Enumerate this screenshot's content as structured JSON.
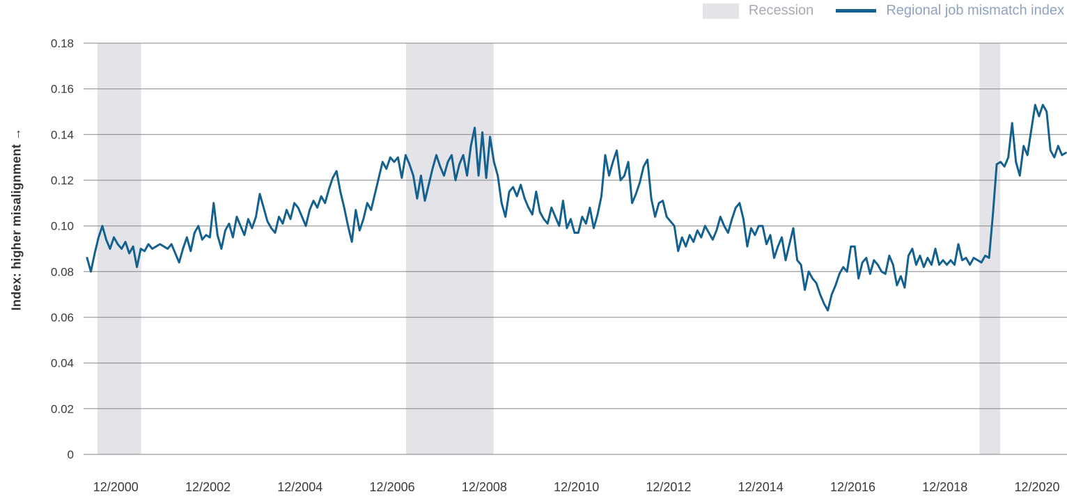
{
  "figure": {
    "y_axis_title": "Index: higher misalignment →",
    "background_color": "#ffffff"
  },
  "legend": {
    "items": [
      {
        "label": "Recession",
        "swatch": "band",
        "swatch_color": "#e3e3e8",
        "text_color": "#a9a9b2"
      },
      {
        "label": "Regional job mismatch index",
        "swatch": "line",
        "swatch_color": "#14618f",
        "text_color": "#8fa3bf"
      }
    ]
  },
  "chart_data": {
    "type": "line",
    "title": "",
    "xlabel": "",
    "ylabel": "Index: higher misalignment →",
    "ylim": [
      0,
      0.18
    ],
    "ytick_step": 0.02,
    "ytick_labels": [
      "0",
      "0.02",
      "0.04",
      "0.06",
      "0.08",
      "0.10",
      "0.12",
      "0.14",
      "0.16",
      "0.18"
    ],
    "grid": "horizontal",
    "gridline_color": "#858585",
    "legend_position": "top-right",
    "x_domain_years": [
      2000.3,
      2021.65
    ],
    "xticks": [
      {
        "year_value": 2001,
        "label": "12/2000"
      },
      {
        "year_value": 2003,
        "label": "12/2002"
      },
      {
        "year_value": 2005,
        "label": "12/2004"
      },
      {
        "year_value": 2007,
        "label": "12/2006"
      },
      {
        "year_value": 2009,
        "label": "12/2008"
      },
      {
        "year_value": 2011,
        "label": "12/2010"
      },
      {
        "year_value": 2013,
        "label": "12/2012"
      },
      {
        "year_value": 2015,
        "label": "12/2014"
      },
      {
        "year_value": 2017,
        "label": "12/2016"
      },
      {
        "year_value": 2019,
        "label": "12/2018"
      },
      {
        "year_value": 2021,
        "label": "12/2020"
      }
    ],
    "recession_bands_years": [
      [
        2000.6,
        2001.55
      ],
      [
        2007.3,
        2009.2
      ],
      [
        2019.75,
        2020.2
      ]
    ],
    "series": [
      {
        "name": "Regional job mismatch index",
        "color": "#14618f",
        "frequency": "monthly",
        "start_year": 2000,
        "start_month": 5,
        "values": [
          0.086,
          0.08,
          0.088,
          0.095,
          0.1,
          0.094,
          0.09,
          0.095,
          0.092,
          0.09,
          0.093,
          0.088,
          0.091,
          0.082,
          0.09,
          0.089,
          0.092,
          0.09,
          0.091,
          0.092,
          0.091,
          0.09,
          0.092,
          0.088,
          0.084,
          0.09,
          0.095,
          0.089,
          0.097,
          0.1,
          0.094,
          0.096,
          0.095,
          0.11,
          0.096,
          0.09,
          0.098,
          0.101,
          0.095,
          0.104,
          0.1,
          0.096,
          0.103,
          0.099,
          0.104,
          0.114,
          0.108,
          0.102,
          0.099,
          0.097,
          0.104,
          0.101,
          0.107,
          0.103,
          0.11,
          0.108,
          0.104,
          0.1,
          0.107,
          0.111,
          0.108,
          0.113,
          0.11,
          0.116,
          0.121,
          0.124,
          0.115,
          0.108,
          0.1,
          0.093,
          0.107,
          0.098,
          0.103,
          0.11,
          0.107,
          0.114,
          0.121,
          0.128,
          0.125,
          0.13,
          0.128,
          0.13,
          0.121,
          0.131,
          0.127,
          0.122,
          0.112,
          0.122,
          0.111,
          0.118,
          0.125,
          0.131,
          0.126,
          0.122,
          0.128,
          0.131,
          0.12,
          0.127,
          0.131,
          0.122,
          0.135,
          0.143,
          0.122,
          0.141,
          0.121,
          0.139,
          0.128,
          0.122,
          0.11,
          0.104,
          0.115,
          0.117,
          0.113,
          0.118,
          0.112,
          0.108,
          0.105,
          0.115,
          0.106,
          0.103,
          0.101,
          0.108,
          0.104,
          0.1,
          0.111,
          0.099,
          0.103,
          0.097,
          0.097,
          0.104,
          0.101,
          0.108,
          0.099,
          0.105,
          0.113,
          0.131,
          0.122,
          0.128,
          0.133,
          0.12,
          0.122,
          0.128,
          0.11,
          0.114,
          0.119,
          0.126,
          0.129,
          0.112,
          0.104,
          0.11,
          0.111,
          0.104,
          0.102,
          0.1,
          0.089,
          0.095,
          0.091,
          0.096,
          0.093,
          0.098,
          0.095,
          0.1,
          0.097,
          0.094,
          0.098,
          0.104,
          0.1,
          0.097,
          0.103,
          0.108,
          0.11,
          0.103,
          0.091,
          0.099,
          0.096,
          0.1,
          0.1,
          0.092,
          0.096,
          0.086,
          0.091,
          0.095,
          0.085,
          0.092,
          0.099,
          0.085,
          0.083,
          0.072,
          0.08,
          0.077,
          0.075,
          0.07,
          0.066,
          0.063,
          0.07,
          0.074,
          0.079,
          0.082,
          0.08,
          0.091,
          0.091,
          0.077,
          0.084,
          0.086,
          0.079,
          0.085,
          0.083,
          0.08,
          0.079,
          0.087,
          0.083,
          0.074,
          0.078,
          0.073,
          0.087,
          0.09,
          0.083,
          0.087,
          0.082,
          0.086,
          0.083,
          0.09,
          0.083,
          0.085,
          0.083,
          0.085,
          0.083,
          0.092,
          0.085,
          0.086,
          0.083,
          0.086,
          0.085,
          0.084,
          0.087,
          0.086,
          0.105,
          0.127,
          0.128,
          0.126,
          0.13,
          0.145,
          0.128,
          0.122,
          0.135,
          0.131,
          0.142,
          0.153,
          0.148,
          0.153,
          0.15,
          0.133,
          0.13,
          0.135,
          0.131,
          0.132
        ]
      }
    ]
  }
}
